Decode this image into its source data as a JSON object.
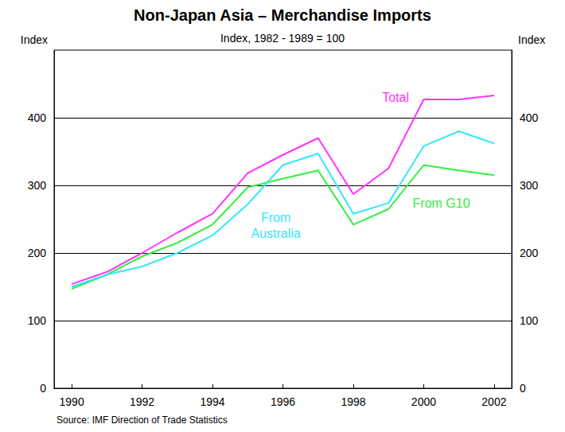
{
  "chart_data": {
    "type": "line",
    "title": "Non-Japan Asia – Merchandise Imports",
    "subtitle": "Index, 1982 - 1989 = 100",
    "ylabel": "Index",
    "source": "Source: IMF Direction of Trade Statistics",
    "x": [
      1990,
      1991,
      1992,
      1993,
      1994,
      1995,
      1996,
      1997,
      1998,
      1999,
      2000,
      2001,
      2002
    ],
    "series": [
      {
        "name": "Total",
        "color": "#ff33ff",
        "values": [
          154,
          172,
          200,
          230,
          258,
          318,
          345,
          370,
          287,
          325,
          427,
          427,
          433
        ]
      },
      {
        "name": "From Australia",
        "color": "#33e8f8",
        "values": [
          150,
          168,
          180,
          200,
          226,
          272,
          330,
          347,
          258,
          274,
          358,
          380,
          362
        ]
      },
      {
        "name": "From G10",
        "color": "#33ee44",
        "values": [
          147,
          168,
          195,
          215,
          242,
          297,
          310,
          322,
          242,
          265,
          330,
          322,
          315
        ]
      }
    ],
    "xlim": [
      1989.5,
      2002.5
    ],
    "xticks": [
      1990,
      1992,
      1994,
      1996,
      1998,
      2000,
      2002
    ],
    "ylim": [
      0,
      500
    ],
    "yticks": [
      0,
      100,
      200,
      300,
      400
    ],
    "y2lim": [
      0,
      500
    ],
    "y2ticks": [
      0,
      100,
      200,
      300,
      400
    ],
    "grid": true
  }
}
